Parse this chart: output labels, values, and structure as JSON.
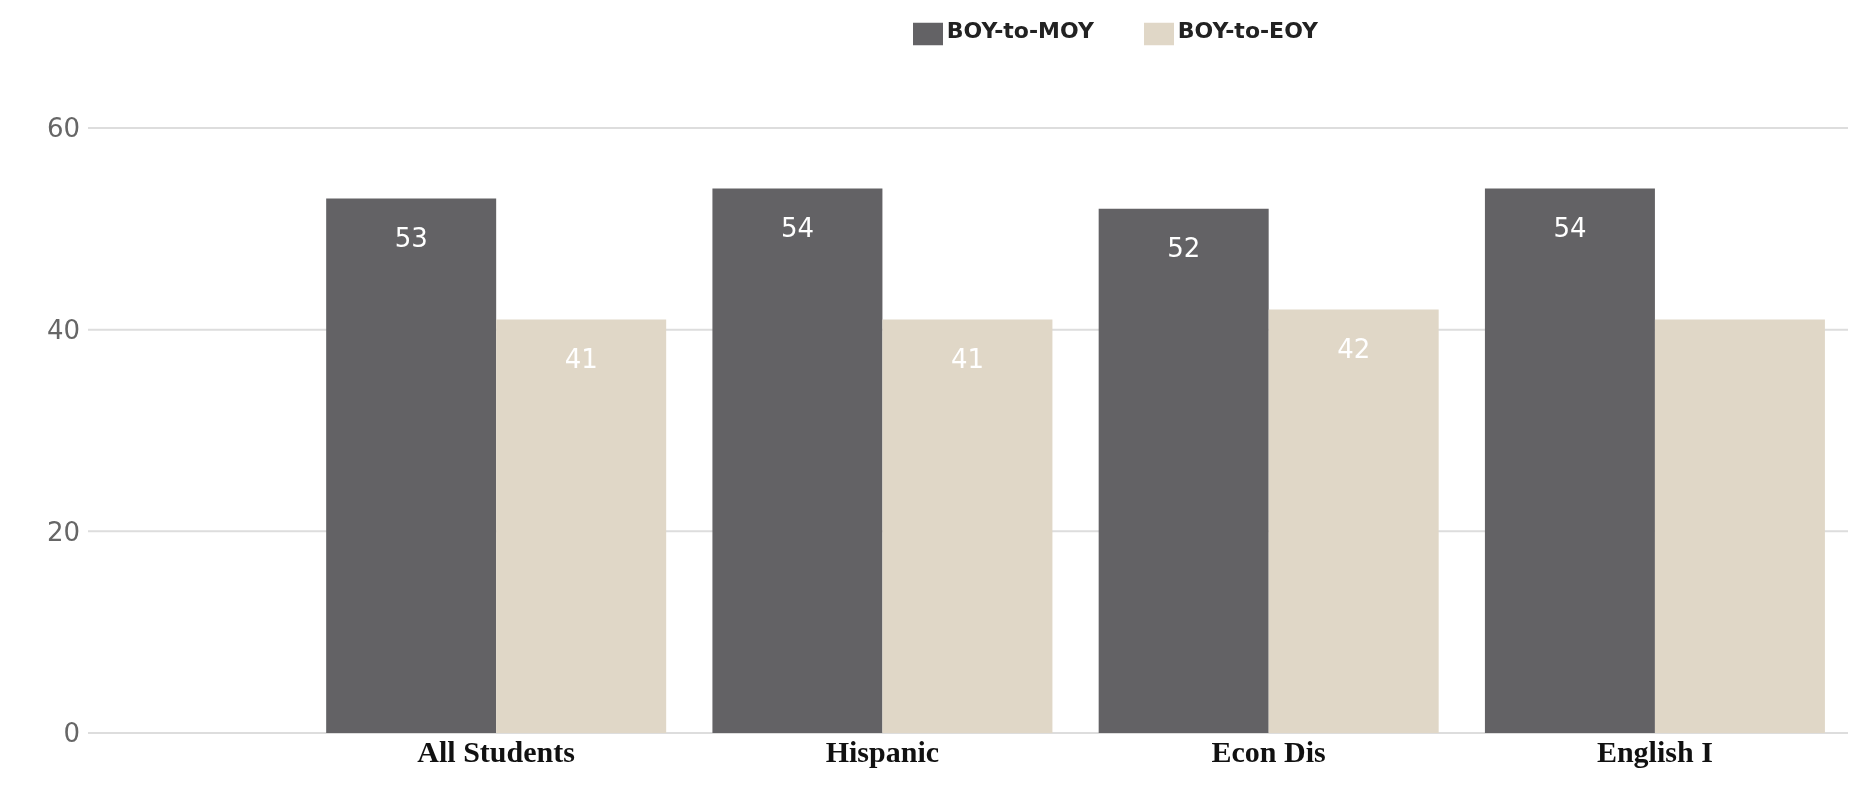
{
  "chart_data": {
    "type": "bar",
    "categories": [
      "All Students",
      "Hispanic",
      "Econ Dis",
      "English I"
    ],
    "series": [
      {
        "name": "BOY-to-MOY",
        "color": "#636265",
        "values": [
          53,
          54,
          52,
          54
        ],
        "value_labels": [
          "53",
          "54",
          "52",
          "54"
        ]
      },
      {
        "name": "BOY-to-EOY",
        "color": "#e0d7c7",
        "values": [
          41,
          41,
          42,
          41
        ],
        "value_labels": [
          "41",
          "41",
          "42",
          null
        ]
      }
    ],
    "ylim": [
      0,
      60
    ],
    "yticks": [
      0,
      20,
      40,
      60
    ],
    "grid": "y",
    "legend": "top right"
  }
}
